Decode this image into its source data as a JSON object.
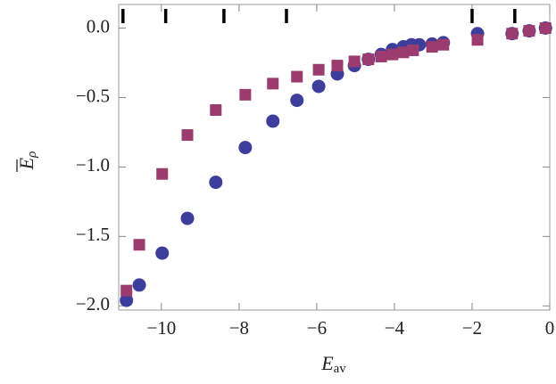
{
  "chart_data": {
    "type": "scatter",
    "xlabel": "E",
    "xlabel_sub": "av",
    "ylabel": "E",
    "ylabel_sub": "ρ",
    "xlim": [
      -11.1,
      0
    ],
    "ylim": [
      -2.03,
      0.17
    ],
    "xticks": [
      {
        "value": -10,
        "label": "−10"
      },
      {
        "value": -8,
        "label": "−8"
      },
      {
        "value": -6,
        "label": "−6"
      },
      {
        "value": -4,
        "label": "−4"
      },
      {
        "value": -2,
        "label": "−2"
      },
      0
    ],
    "yticks": [
      {
        "value": 0,
        "label": "0.0"
      },
      {
        "value": -0.5,
        "label": "−0.5"
      },
      {
        "value": -1,
        "label": "−1.0"
      },
      {
        "value": -1.5,
        "label": "−1.5"
      },
      {
        "value": -2,
        "label": "−2.0"
      }
    ],
    "top_marks": [
      -10.99,
      -9.89,
      -8.39,
      -6.78,
      -2.0,
      -0.9
    ],
    "top_marks_color": "#000000",
    "series": [
      {
        "marker": "circle",
        "color": "#3d3d9c",
        "x": [
          -10.9,
          -10.57,
          -9.98,
          -9.33,
          -8.6,
          -7.84,
          -7.13,
          -6.51,
          -5.95,
          -5.47,
          -5.03,
          -4.67,
          -4.34,
          -4.05,
          -3.77,
          -3.56,
          -3.36,
          -3.03,
          -2.74,
          -1.86,
          -0.97,
          -0.53,
          -0.11
        ],
        "y": [
          -1.96,
          -1.85,
          -1.62,
          -1.37,
          -1.11,
          -0.86,
          -0.67,
          -0.52,
          -0.42,
          -0.33,
          -0.27,
          -0.225,
          -0.19,
          -0.155,
          -0.135,
          -0.12,
          -0.12,
          -0.115,
          -0.105,
          -0.04,
          -0.04,
          -0.02,
          0.0
        ]
      },
      {
        "marker": "square",
        "color": "#9b3b6e",
        "x": [
          -10.9,
          -10.57,
          -9.98,
          -9.33,
          -8.6,
          -7.84,
          -7.13,
          -6.51,
          -5.95,
          -5.47,
          -5.03,
          -4.67,
          -4.34,
          -4.05,
          -3.77,
          -3.52,
          -3.03,
          -2.74,
          -1.86,
          -0.97,
          -0.53,
          -0.11
        ],
        "y": [
          -1.89,
          -1.56,
          -1.05,
          -0.77,
          -0.59,
          -0.48,
          -0.4,
          -0.35,
          -0.3,
          -0.27,
          -0.24,
          -0.225,
          -0.205,
          -0.19,
          -0.175,
          -0.16,
          -0.135,
          -0.12,
          -0.085,
          -0.04,
          -0.02,
          0.0
        ]
      }
    ]
  }
}
